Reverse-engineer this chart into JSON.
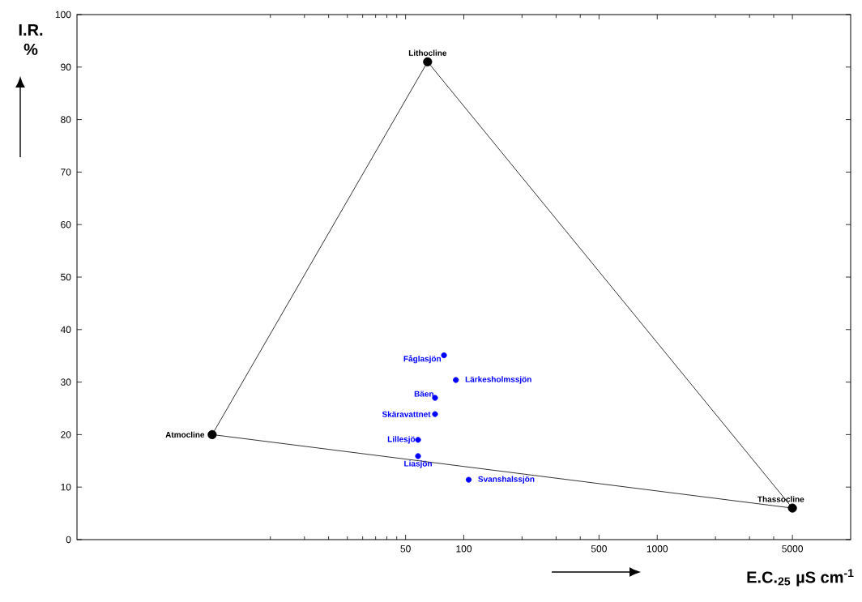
{
  "chart_data": {
    "type": "line",
    "xlabel": "E.C.$_{25}$  µS cm$^{-1}$",
    "ylabel": "I.R. %",
    "log": "x",
    "xlim": [
      1,
      10000
    ],
    "xticks": [
      {
        "value": 10,
        "label": null
      },
      {
        "value": 15,
        "label": null
      },
      {
        "value": 20,
        "label": null
      },
      {
        "value": 25,
        "label": null
      },
      {
        "value": 30,
        "label": null
      },
      {
        "value": 35,
        "label": null
      },
      {
        "value": 40,
        "label": null
      },
      {
        "value": 45,
        "label": null
      },
      50,
      100,
      {
        "value": 200,
        "label": null
      },
      {
        "value": 300,
        "label": null
      },
      {
        "value": 400,
        "label": null
      },
      500,
      1000,
      {
        "value": 2000,
        "label": null
      },
      {
        "value": 3000,
        "label": null
      },
      {
        "value": 4000,
        "label": null
      },
      5000
    ],
    "ylim": [
      0,
      100
    ],
    "yticks": [
      0,
      10,
      20,
      30,
      40,
      50,
      60,
      70,
      80,
      90,
      100
    ],
    "series": [
      {
        "color": "#000000",
        "marker": "none",
        "x": [
          5,
          65
        ],
        "values": [
          20,
          91
        ]
      },
      {
        "color": "#000000",
        "marker": "none",
        "x": [
          65,
          5000
        ],
        "values": [
          91,
          6
        ]
      },
      {
        "color": "#000000",
        "marker": "none",
        "x": [
          5,
          5000
        ],
        "values": [
          20,
          6
        ]
      },
      {
        "type": "scatter",
        "color": "#000000",
        "marker": "circle",
        "x": [
          5,
          65,
          5000
        ],
        "values": [
          20,
          91,
          6
        ]
      },
      {
        "type": "scatter",
        "color": "#0000ff",
        "marker": "circle",
        "x": [
          79,
          91,
          71,
          71,
          58,
          58,
          106
        ],
        "values": [
          35.1,
          30.4,
          27.0,
          23.9,
          19.0,
          15.9,
          11.4
        ]
      }
    ],
    "annotations": [
      {
        "text": "Atmocline",
        "x": 5,
        "y": 20
      },
      {
        "text": "Lithocline",
        "x": 65,
        "y": 91
      },
      {
        "text": "Thassocline",
        "x": 5000,
        "y": 6
      },
      {
        "text": "Fåglasjön",
        "x": 79,
        "y": 35.1
      },
      {
        "text": "Lärkesholmssjön",
        "x": 91,
        "y": 30.4
      },
      {
        "text": "Bäen",
        "x": 71,
        "y": 27.0
      },
      {
        "text": "Skäravattnet",
        "x": 71,
        "y": 23.9
      },
      {
        "text": "Lillesjö",
        "x": 58,
        "y": 19.0
      },
      {
        "text": "Liasjön",
        "x": 58,
        "y": 15.9
      },
      {
        "text": "Svanshalssjön",
        "x": 106,
        "y": 11.4
      }
    ]
  }
}
